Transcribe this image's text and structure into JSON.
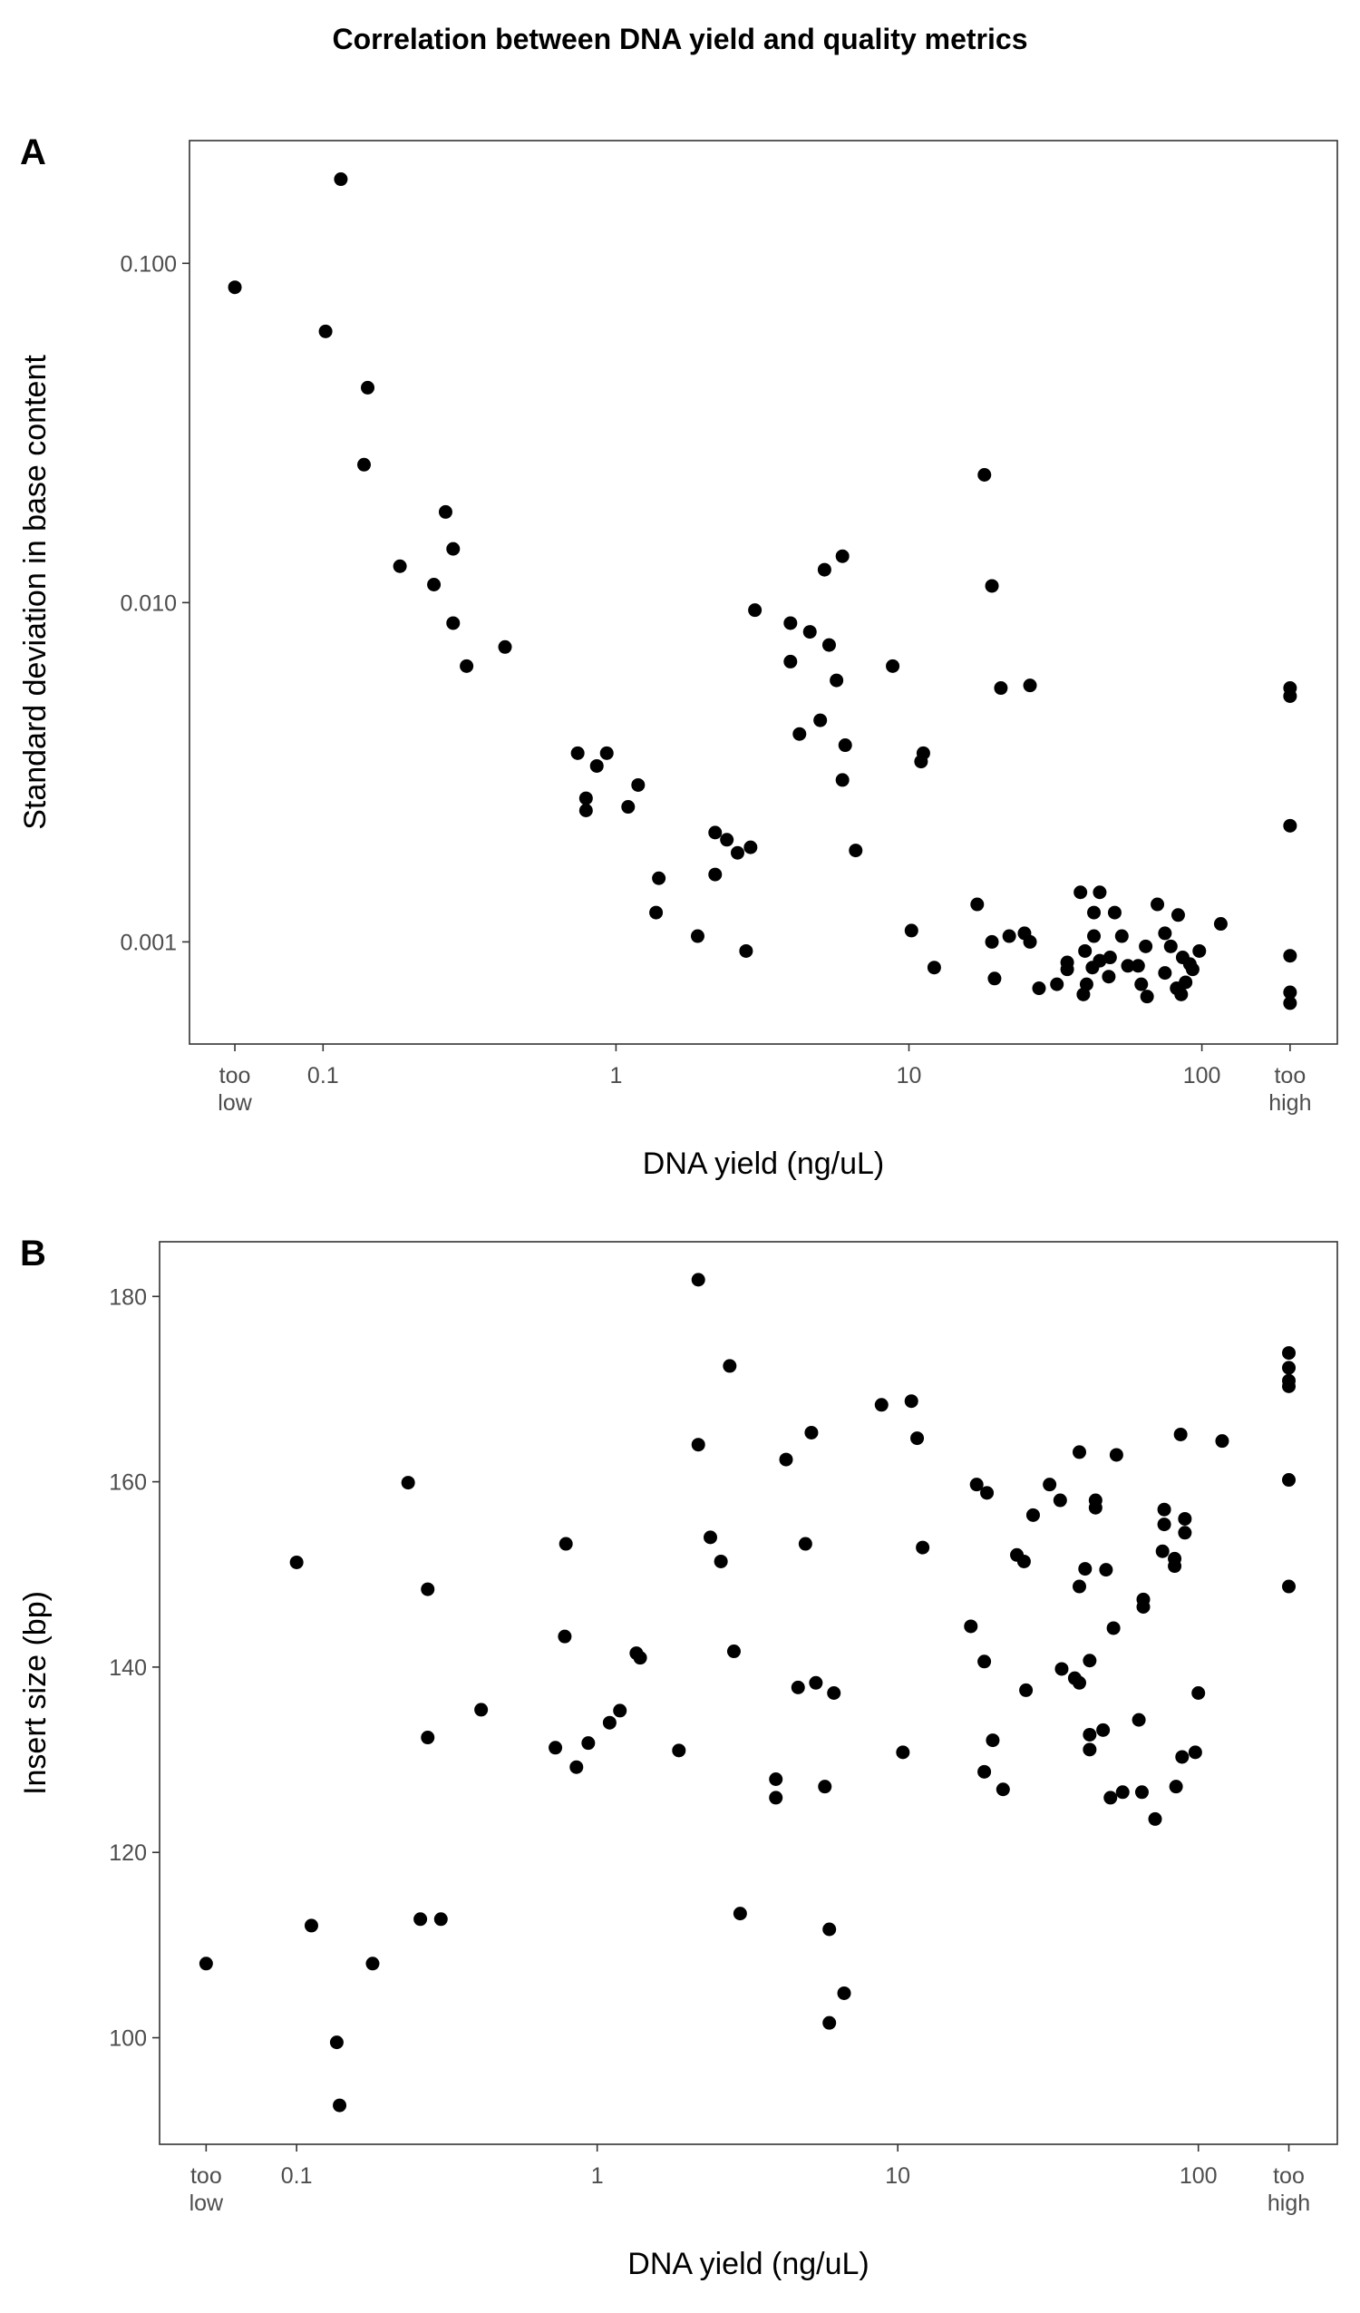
{
  "title": "Correlation between DNA yield and quality metrics",
  "chart_data": [
    {
      "type": "scatter",
      "label": "A",
      "xlabel": "DNA yield (ng/uL)",
      "ylabel": "Standard deviation in base content",
      "xscale": "log",
      "yscale": "log",
      "color": "#000000",
      "grid": false,
      "xlim": [
        0.035,
        290
      ],
      "ylim": [
        0.0005,
        0.23
      ],
      "xticks": [
        {
          "value": 0.05,
          "label": "too\nlow"
        },
        0.1,
        1,
        10,
        100,
        {
          "value": 200,
          "label": "too\nhigh"
        }
      ],
      "yticks": [
        {
          "value": 0.001,
          "label": "0.001"
        },
        {
          "value": 0.01,
          "label": "0.010"
        },
        {
          "value": 0.1,
          "label": "0.100"
        }
      ],
      "x": [
        0.05,
        0.115,
        0.102,
        0.142,
        0.138,
        0.262,
        0.278,
        0.183,
        0.239,
        0.278,
        0.309,
        0.418,
        0.74,
        0.93,
        0.86,
        0.79,
        0.79,
        1.1,
        1.19,
        1.4,
        1.37,
        1.9,
        2.18,
        2.39,
        2.18,
        2.6,
        2.88,
        2.78,
        2.98,
        3.94,
        4.59,
        3.94,
        5.34,
        4.23,
        4.98,
        5.15,
        5.93,
        5.66,
        6.06,
        5.93,
        6.58,
        8.8,
        11.2,
        11,
        10.2,
        12.2,
        18.1,
        19.2,
        20.6,
        25.9,
        17.1,
        19.2,
        19.6,
        22,
        24.8,
        25.9,
        27.8,
        32,
        34.7,
        34.7,
        38.5,
        39.4,
        40.4,
        39.9,
        42.8,
        42.3,
        42.8,
        44.8,
        44.8,
        48.1,
        50.4,
        48.6,
        53.3,
        55.9,
        60.6,
        62.1,
        64.3,
        65,
        70.5,
        74.8,
        74.8,
        78.3,
        83,
        82,
        85,
        86,
        88,
        91,
        93,
        98,
        116,
        200,
        200,
        200,
        200,
        200,
        200
      ],
      "values": [
        0.085,
        0.177,
        0.063,
        0.043,
        0.0255,
        0.0185,
        0.0144,
        0.0128,
        0.0113,
        0.0087,
        0.0065,
        0.0074,
        0.0036,
        0.0036,
        0.0033,
        0.00265,
        0.00244,
        0.0025,
        0.0029,
        0.00154,
        0.00122,
        0.00104,
        0.0021,
        0.002,
        0.00158,
        0.00183,
        0.0019,
        0.00094,
        0.0095,
        0.0087,
        0.0082,
        0.0067,
        0.0075,
        0.0041,
        0.0045,
        0.0125,
        0.0137,
        0.0059,
        0.0038,
        0.003,
        0.00186,
        0.0065,
        0.0036,
        0.0034,
        0.00108,
        0.00084,
        0.0238,
        0.0112,
        0.0056,
        0.0057,
        0.00129,
        0.001,
        0.00078,
        0.00104,
        0.00106,
        0.001,
        0.00073,
        0.00075,
        0.00087,
        0.00083,
        0.0014,
        0.0007,
        0.00075,
        0.00094,
        0.00122,
        0.00084,
        0.00104,
        0.0014,
        0.00088,
        0.00079,
        0.00122,
        0.0009,
        0.00104,
        0.00085,
        0.00085,
        0.00075,
        0.00097,
        0.00069,
        0.00129,
        0.00106,
        0.00081,
        0.00097,
        0.0012,
        0.00073,
        0.0007,
        0.0009,
        0.00076,
        0.00086,
        0.00083,
        0.00094,
        0.00113,
        0.0056,
        0.0053,
        0.0022,
        0.00091,
        0.00071,
        0.00066
      ]
    },
    {
      "type": "scatter",
      "label": "B",
      "xlabel": "DNA yield (ng/uL)",
      "ylabel": "Insert size (bp)",
      "xscale": "log",
      "yscale": "linear",
      "color": "#000000",
      "grid": false,
      "xlim": [
        0.035,
        290
      ],
      "ylim": [
        88.5,
        185.9
      ],
      "xticks": [
        {
          "value": 0.05,
          "label": "too\nlow"
        },
        0.1,
        1,
        10,
        100,
        {
          "value": 200,
          "label": "too\nhigh"
        }
      ],
      "yticks": [
        100,
        120,
        140,
        160,
        180
      ],
      "x": [
        0.05,
        0.1,
        0.112,
        0.136,
        0.139,
        0.179,
        0.235,
        0.258,
        0.273,
        0.273,
        0.302,
        0.411,
        0.726,
        0.787,
        0.78,
        0.853,
        0.934,
        1.1,
        1.19,
        1.35,
        1.39,
        1.87,
        2.17,
        2.17,
        2.38,
        2.58,
        2.76,
        2.85,
        2.99,
        3.93,
        3.93,
        4.25,
        4.66,
        4.93,
        5.16,
        5.34,
        5.72,
        5.92,
        5.92,
        6.13,
        6.63,
        8.83,
        10.4,
        11.1,
        11.6,
        12.1,
        17.5,
        18.3,
        19.4,
        19.4,
        19.8,
        20.7,
        22.4,
        24.9,
        26.3,
        26.7,
        28.2,
        32,
        34.7,
        35.1,
        38.8,
        40.2,
        40.2,
        40.2,
        42,
        43.5,
        43.5,
        43.5,
        45.5,
        45.5,
        48.2,
        49.3,
        51,
        52.2,
        53.4,
        56,
        63.4,
        64.9,
        65.6,
        65.6,
        71.8,
        76,
        77,
        77,
        83.4,
        83.4,
        84.3,
        87.3,
        88.3,
        90.2,
        90.2,
        97.7,
        100,
        120,
        200,
        200,
        200,
        200,
        200,
        200
      ],
      "values": [
        108,
        151.3,
        112.1,
        99.5,
        92.7,
        108,
        159.9,
        112.8,
        148.4,
        132.4,
        112.8,
        135.4,
        131.3,
        153.3,
        143.3,
        129.2,
        131.8,
        134,
        135.3,
        141.5,
        141,
        131,
        181.8,
        164,
        154,
        151.4,
        172.5,
        141.7,
        113.4,
        127.9,
        125.9,
        162.4,
        137.8,
        153.3,
        165.3,
        138.3,
        127.1,
        111.7,
        101.6,
        137.2,
        104.8,
        168.3,
        130.8,
        168.7,
        164.7,
        152.9,
        144.4,
        159.7,
        140.6,
        128.7,
        158.8,
        132.1,
        126.8,
        152.1,
        151.4,
        137.5,
        156.4,
        159.7,
        158,
        139.8,
        138.8,
        148.7,
        138.3,
        163.2,
        150.6,
        140.7,
        132.7,
        131.1,
        158,
        157.2,
        133.2,
        150.5,
        125.9,
        144.2,
        162.9,
        126.5,
        134.3,
        126.5,
        147.3,
        146.5,
        123.6,
        152.5,
        157,
        155.4,
        151.7,
        150.9,
        127.1,
        165.1,
        130.3,
        156,
        154.5,
        130.8,
        137.2,
        164.4,
        173.9,
        172.3,
        170.9,
        170.3,
        160.2,
        148.7
      ]
    }
  ]
}
